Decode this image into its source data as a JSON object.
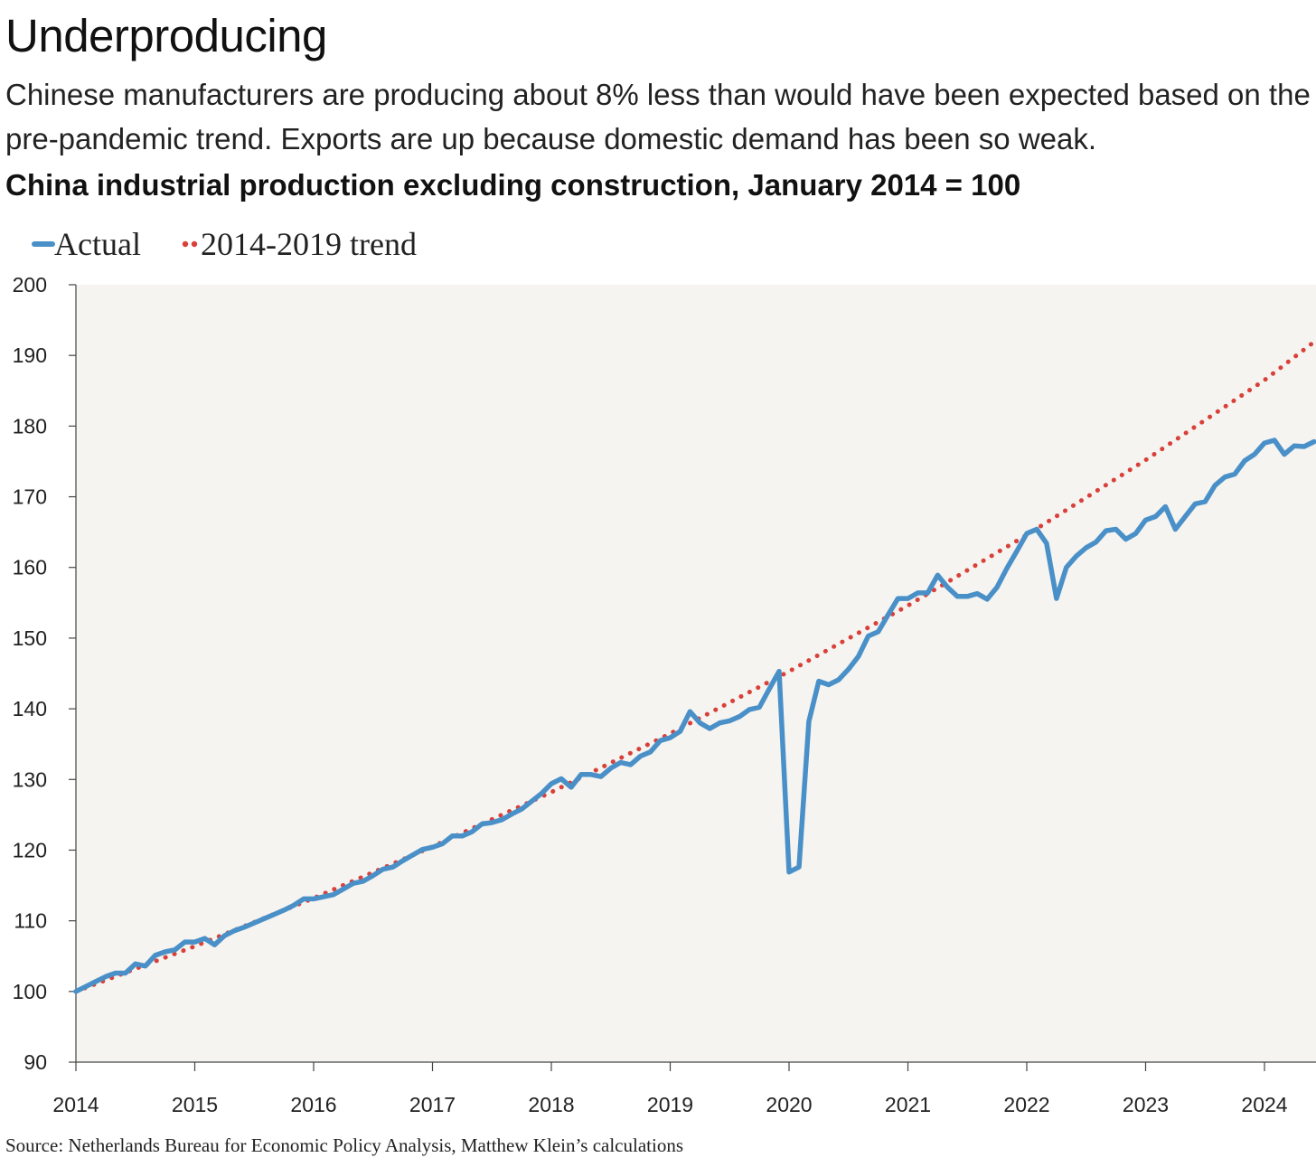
{
  "header": {
    "title": "Underproducing",
    "subtitle": "Chinese manufacturers are producing about 8% less than would have been expected based on the pre-pandemic trend. Exports are up because domestic demand has been so weak.",
    "chart_title": "China industrial production excluding construction, January 2014 = 100"
  },
  "footer": {
    "source": "Source: Netherlands Bureau for Economic Policy Analysis, Matthew Klein’s calculations"
  },
  "colors": {
    "actual": "#4a90c8",
    "trend": "#d9403a",
    "plot_background": "#f5f4f0"
  },
  "chart_data": {
    "type": "line",
    "title": "China industrial production excluding construction, January 2014 = 100",
    "xlabel": "",
    "ylabel": "",
    "ylim": [
      90,
      200
    ],
    "xlim": [
      "2014-01",
      "2024-06"
    ],
    "y_ticks": [
      "90",
      "100",
      "110",
      "120",
      "130",
      "140",
      "150",
      "160",
      "170",
      "180",
      "190",
      "200"
    ],
    "x_ticks": [
      "2014",
      "2015",
      "2016",
      "2017",
      "2018",
      "2019",
      "2020",
      "2021",
      "2022",
      "2023",
      "2024"
    ],
    "grid": false,
    "legend_position": "top-left",
    "series": [
      {
        "name": "Actual",
        "style": "solid",
        "points": [
          [
            "2014-01",
            100.0
          ],
          [
            "2014-02",
            100.7
          ],
          [
            "2014-03",
            101.4
          ],
          [
            "2014-04",
            102.1
          ],
          [
            "2014-05",
            102.6
          ],
          [
            "2014-06",
            102.6
          ],
          [
            "2014-07",
            103.9
          ],
          [
            "2014-08",
            103.6
          ],
          [
            "2014-09",
            105.1
          ],
          [
            "2014-10",
            105.6
          ],
          [
            "2014-11",
            105.9
          ],
          [
            "2014-12",
            107.0
          ],
          [
            "2015-01",
            107.0
          ],
          [
            "2015-02",
            107.5
          ],
          [
            "2015-03",
            106.6
          ],
          [
            "2015-04",
            107.9
          ],
          [
            "2015-05",
            108.6
          ],
          [
            "2015-06",
            109.1
          ],
          [
            "2015-07",
            109.7
          ],
          [
            "2015-08",
            110.3
          ],
          [
            "2015-09",
            110.9
          ],
          [
            "2015-10",
            111.5
          ],
          [
            "2015-11",
            112.2
          ],
          [
            "2015-12",
            113.1
          ],
          [
            "2016-01",
            113.1
          ],
          [
            "2016-02",
            113.4
          ],
          [
            "2016-03",
            113.7
          ],
          [
            "2016-04",
            114.5
          ],
          [
            "2016-05",
            115.3
          ],
          [
            "2016-06",
            115.6
          ],
          [
            "2016-07",
            116.4
          ],
          [
            "2016-08",
            117.3
          ],
          [
            "2016-09",
            117.6
          ],
          [
            "2016-10",
            118.5
          ],
          [
            "2016-11",
            119.3
          ],
          [
            "2016-12",
            120.1
          ],
          [
            "2017-01",
            120.4
          ],
          [
            "2017-02",
            120.9
          ],
          [
            "2017-03",
            122.0
          ],
          [
            "2017-04",
            122.0
          ],
          [
            "2017-05",
            122.6
          ],
          [
            "2017-06",
            123.7
          ],
          [
            "2017-07",
            123.9
          ],
          [
            "2017-08",
            124.3
          ],
          [
            "2017-09",
            125.1
          ],
          [
            "2017-10",
            125.8
          ],
          [
            "2017-11",
            126.9
          ],
          [
            "2017-12",
            128.0
          ],
          [
            "2018-01",
            129.4
          ],
          [
            "2018-02",
            130.1
          ],
          [
            "2018-03",
            128.9
          ],
          [
            "2018-04",
            130.7
          ],
          [
            "2018-05",
            130.7
          ],
          [
            "2018-06",
            130.4
          ],
          [
            "2018-07",
            131.6
          ],
          [
            "2018-08",
            132.4
          ],
          [
            "2018-09",
            132.1
          ],
          [
            "2018-10",
            133.3
          ],
          [
            "2018-11",
            133.9
          ],
          [
            "2018-12",
            135.5
          ],
          [
            "2019-01",
            135.9
          ],
          [
            "2019-02",
            136.8
          ],
          [
            "2019-03",
            139.6
          ],
          [
            "2019-04",
            138.0
          ],
          [
            "2019-05",
            137.2
          ],
          [
            "2019-06",
            138.0
          ],
          [
            "2019-07",
            138.3
          ],
          [
            "2019-08",
            138.9
          ],
          [
            "2019-09",
            139.9
          ],
          [
            "2019-10",
            140.2
          ],
          [
            "2019-11",
            142.8
          ],
          [
            "2019-12",
            145.3
          ],
          [
            "2020-01",
            116.9
          ],
          [
            "2020-02",
            117.6
          ],
          [
            "2020-03",
            138.2
          ],
          [
            "2020-04",
            143.9
          ],
          [
            "2020-05",
            143.4
          ],
          [
            "2020-06",
            144.1
          ],
          [
            "2020-07",
            145.6
          ],
          [
            "2020-08",
            147.4
          ],
          [
            "2020-09",
            150.3
          ],
          [
            "2020-10",
            150.9
          ],
          [
            "2020-11",
            153.3
          ],
          [
            "2020-12",
            155.6
          ],
          [
            "2021-01",
            155.6
          ],
          [
            "2021-02",
            156.4
          ],
          [
            "2021-03",
            156.4
          ],
          [
            "2021-04",
            158.9
          ],
          [
            "2021-05",
            157.2
          ],
          [
            "2021-06",
            155.9
          ],
          [
            "2021-07",
            155.9
          ],
          [
            "2021-08",
            156.3
          ],
          [
            "2021-09",
            155.5
          ],
          [
            "2021-10",
            157.2
          ],
          [
            "2021-11",
            159.9
          ],
          [
            "2021-12",
            162.3
          ],
          [
            "2022-01",
            164.8
          ],
          [
            "2022-02",
            165.4
          ],
          [
            "2022-03",
            163.4
          ],
          [
            "2022-04",
            155.6
          ],
          [
            "2022-05",
            160.0
          ],
          [
            "2022-06",
            161.6
          ],
          [
            "2022-07",
            162.8
          ],
          [
            "2022-08",
            163.6
          ],
          [
            "2022-09",
            165.2
          ],
          [
            "2022-10",
            165.4
          ],
          [
            "2022-11",
            164.0
          ],
          [
            "2022-12",
            164.8
          ],
          [
            "2023-01",
            166.7
          ],
          [
            "2023-02",
            167.2
          ],
          [
            "2023-03",
            168.6
          ],
          [
            "2023-04",
            165.4
          ],
          [
            "2023-05",
            167.2
          ],
          [
            "2023-06",
            169.0
          ],
          [
            "2023-07",
            169.3
          ],
          [
            "2023-08",
            171.6
          ],
          [
            "2023-09",
            172.8
          ],
          [
            "2023-10",
            173.2
          ],
          [
            "2023-11",
            175.1
          ],
          [
            "2023-12",
            176.0
          ],
          [
            "2024-01",
            177.6
          ],
          [
            "2024-02",
            178.0
          ],
          [
            "2024-03",
            176.0
          ],
          [
            "2024-04",
            177.2
          ],
          [
            "2024-05",
            177.1
          ],
          [
            "2024-06",
            177.8
          ]
        ]
      },
      {
        "name": "2014-2019 trend",
        "style": "dotted",
        "points": [
          [
            "2014-01",
            100.0
          ],
          [
            "2015-01",
            106.4
          ],
          [
            "2016-01",
            113.2
          ],
          [
            "2017-01",
            120.5
          ],
          [
            "2018-01",
            128.2
          ],
          [
            "2019-01",
            136.5
          ],
          [
            "2020-01",
            145.3
          ],
          [
            "2021-01",
            154.6
          ],
          [
            "2022-01",
            164.6
          ],
          [
            "2023-01",
            175.2
          ],
          [
            "2024-01",
            186.5
          ],
          [
            "2024-06",
            191.9
          ]
        ]
      }
    ]
  }
}
